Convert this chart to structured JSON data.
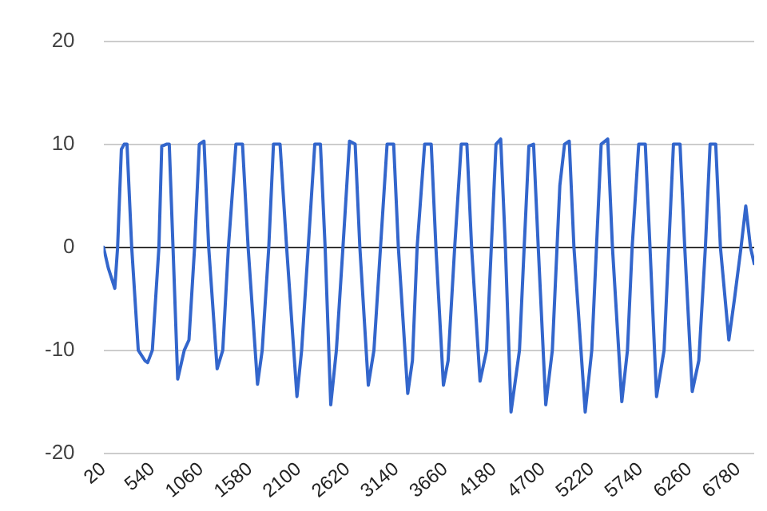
{
  "chart_data": {
    "type": "line",
    "grid": "y",
    "legend": false,
    "marker": "none",
    "line_style": "solid",
    "xlim": [
      20,
      6950
    ],
    "xticks": [
      20,
      540,
      1060,
      1580,
      2100,
      2620,
      3140,
      3660,
      4180,
      4700,
      5220,
      5740,
      6260,
      6780
    ],
    "ylim": [
      -20,
      20
    ],
    "yticks": [
      -20,
      -10,
      0,
      10,
      20
    ],
    "x": [
      20,
      70,
      140,
      170,
      210,
      240,
      270,
      320,
      390,
      460,
      490,
      540,
      610,
      640,
      690,
      720,
      760,
      810,
      880,
      930,
      990,
      1040,
      1090,
      1140,
      1230,
      1290,
      1350,
      1430,
      1500,
      1560,
      1660,
      1710,
      1780,
      1830,
      1900,
      1970,
      2080,
      2130,
      2200,
      2270,
      2330,
      2380,
      2440,
      2500,
      2570,
      2640,
      2700,
      2750,
      2840,
      2900,
      2970,
      3040,
      3110,
      3160,
      3260,
      3310,
      3360,
      3440,
      3510,
      3560,
      3640,
      3690,
      3760,
      3830,
      3890,
      3940,
      4030,
      4100,
      4150,
      4200,
      4250,
      4300,
      4360,
      4450,
      4500,
      4550,
      4600,
      4650,
      4730,
      4800,
      4850,
      4880,
      4930,
      4980,
      5030,
      5150,
      5220,
      5270,
      5320,
      5390,
      5440,
      5540,
      5600,
      5650,
      5720,
      5790,
      5840,
      5910,
      5990,
      6040,
      6090,
      6160,
      6210,
      6290,
      6360,
      6430,
      6480,
      6540,
      6590,
      6680,
      6740,
      6810,
      6860,
      6910,
      6950
    ],
    "series": [
      {
        "color": "#3366cc",
        "values": [
          0,
          -2,
          -4,
          0,
          9.5,
          10,
          10,
          0,
          -10,
          -11,
          -11.2,
          -10,
          0,
          9.8,
          10,
          10,
          0,
          -12.8,
          -10,
          -9,
          0,
          10,
          10.3,
          0,
          -11.8,
          -10,
          0,
          10,
          10,
          0,
          -13.3,
          -10,
          0,
          10,
          10,
          0,
          -14.5,
          -10,
          0,
          10,
          10,
          0,
          -15.3,
          -10,
          0,
          10.3,
          10,
          0,
          -13.4,
          -10,
          0,
          10,
          10,
          0,
          -14.2,
          -11,
          0,
          10,
          10,
          0,
          -13.4,
          -11,
          0,
          10,
          10,
          0,
          -13,
          -10,
          0,
          10,
          10.5,
          0,
          -16,
          -10,
          0,
          9.8,
          10,
          0,
          -15.3,
          -10,
          0,
          6,
          10,
          10.3,
          0,
          -16,
          -10,
          0,
          10,
          10.5,
          0,
          -15,
          -10,
          0,
          10,
          10,
          0,
          -14.5,
          -10,
          0,
          10,
          10,
          0,
          -14,
          -11,
          0,
          10,
          10,
          0,
          -9,
          -5,
          0,
          4,
          0,
          -1.6
        ]
      }
    ]
  }
}
